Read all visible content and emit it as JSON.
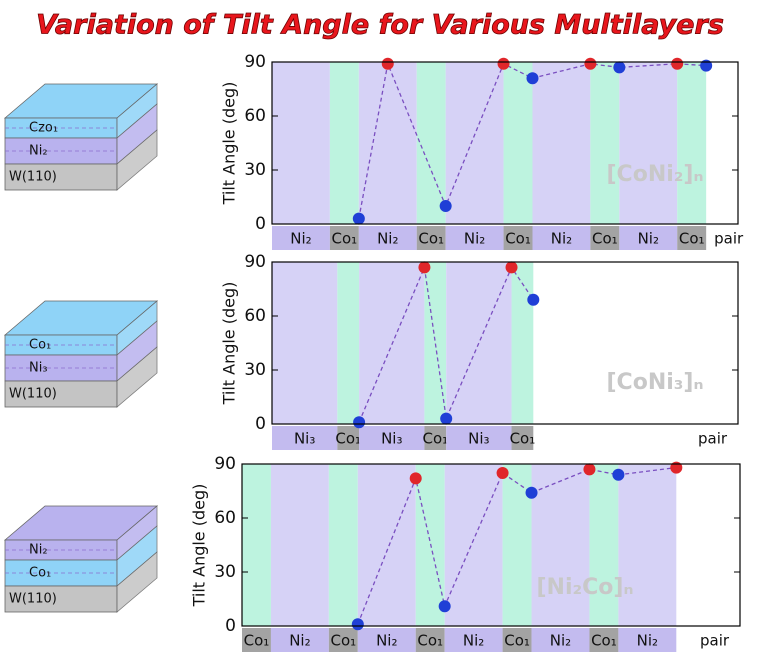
{
  "title": "Variation of Tilt Angle for Various Multilayers",
  "icons": [
    {
      "layers": [
        {
          "label": "Czo₁",
          "color": "#8fd3f7"
        },
        {
          "label": "Ni₂",
          "color": "#b9b2ee"
        },
        {
          "label": "W(110)",
          "color": "#c4c4c4"
        }
      ]
    },
    {
      "layers": [
        {
          "label": "Co₁",
          "color": "#8fd3f7"
        },
        {
          "label": "Ni₃",
          "color": "#b9b2ee"
        },
        {
          "label": "W(110)",
          "color": "#c4c4c4"
        }
      ]
    },
    {
      "layers": [
        {
          "label": "Ni₂",
          "color": "#b9b2ee"
        },
        {
          "label": "Co₁",
          "color": "#8fd3f7"
        },
        {
          "label": "W(110)",
          "color": "#c4c4c4"
        }
      ]
    }
  ],
  "chart_data": [
    {
      "type": "line",
      "y_label": "Tilt Angle  (deg)",
      "watermark": "[CoNi₂]ₙ",
      "x_unit_label": "pair",
      "xlim": [
        0,
        16.1
      ],
      "ylim": [
        0,
        90
      ],
      "yticks": [
        0,
        30,
        60,
        90
      ],
      "line_color": "#7a4fc0",
      "layers": [
        {
          "label": "Ni₂",
          "x0": 0,
          "x1": 2,
          "color": "#d6d2f6",
          "strip_color": "#c3bbef"
        },
        {
          "label": "Co₁",
          "x0": 2,
          "x1": 3,
          "color": "#bdf3df",
          "strip_color": "#a3a3a3"
        },
        {
          "label": "Ni₂",
          "x0": 3,
          "x1": 5,
          "color": "#d6d2f6",
          "strip_color": "#c3bbef"
        },
        {
          "label": "Co₁",
          "x0": 5,
          "x1": 6,
          "color": "#bdf3df",
          "strip_color": "#a3a3a3"
        },
        {
          "label": "Ni₂",
          "x0": 6,
          "x1": 8,
          "color": "#d6d2f6",
          "strip_color": "#c3bbef"
        },
        {
          "label": "Co₁",
          "x0": 8,
          "x1": 9,
          "color": "#bdf3df",
          "strip_color": "#a3a3a3"
        },
        {
          "label": "Ni₂",
          "x0": 9,
          "x1": 11,
          "color": "#d6d2f6",
          "strip_color": "#c3bbef"
        },
        {
          "label": "Co₁",
          "x0": 11,
          "x1": 12,
          "color": "#bdf3df",
          "strip_color": "#a3a3a3"
        },
        {
          "label": "Ni₂",
          "x0": 12,
          "x1": 14,
          "color": "#d6d2f6",
          "strip_color": "#c3bbef"
        },
        {
          "label": "Co₁",
          "x0": 14,
          "x1": 15,
          "color": "#bdf3df",
          "strip_color": "#a3a3a3"
        }
      ],
      "x": [
        3,
        4,
        6,
        8,
        9,
        11,
        12,
        14,
        15
      ],
      "values": [
        3,
        89,
        10,
        89,
        81,
        89,
        87,
        89,
        88
      ],
      "point_colors": [
        "#1f3fd6",
        "#e0262a",
        "#1f3fd6",
        "#e0262a",
        "#1f3fd6",
        "#e0262a",
        "#1f3fd6",
        "#e0262a",
        "#1f3fd6"
      ]
    },
    {
      "type": "line",
      "y_label": "Tilt Angle  (deg)",
      "watermark": "[CoNi₃]ₙ",
      "x_unit_label": "pair",
      "xlim": [
        0,
        21.4
      ],
      "ylim": [
        0,
        90
      ],
      "yticks": [
        0,
        30,
        60,
        90
      ],
      "line_color": "#7a4fc0",
      "layers": [
        {
          "label": "Ni₃",
          "x0": 0,
          "x1": 3,
          "color": "#d6d2f6",
          "strip_color": "#c3bbef"
        },
        {
          "label": "Co₁",
          "x0": 3,
          "x1": 4,
          "color": "#bdf3df",
          "strip_color": "#a3a3a3"
        },
        {
          "label": "Ni₃",
          "x0": 4,
          "x1": 7,
          "color": "#d6d2f6",
          "strip_color": "#c3bbef"
        },
        {
          "label": "Co₁",
          "x0": 7,
          "x1": 8,
          "color": "#bdf3df",
          "strip_color": "#a3a3a3"
        },
        {
          "label": "Ni₃",
          "x0": 8,
          "x1": 11,
          "color": "#d6d2f6",
          "strip_color": "#c3bbef"
        },
        {
          "label": "Co₁",
          "x0": 11,
          "x1": 12,
          "color": "#bdf3df",
          "strip_color": "#a3a3a3"
        }
      ],
      "x": [
        4,
        7,
        8,
        11,
        12
      ],
      "values": [
        1,
        87,
        3,
        87,
        69
      ],
      "point_colors": [
        "#1f3fd6",
        "#e0262a",
        "#1f3fd6",
        "#e0262a",
        "#1f3fd6"
      ]
    },
    {
      "type": "line",
      "y_label": "Tilt Angle  (deg)",
      "watermark": "[Ni₂Co]ₙ",
      "x_unit_label": "pair",
      "xlim": [
        0,
        17.2
      ],
      "ylim": [
        0,
        90
      ],
      "yticks": [
        0,
        30,
        60,
        90
      ],
      "line_color": "#7a4fc0",
      "layers": [
        {
          "label": "Co₁",
          "x0": 0,
          "x1": 1,
          "color": "#bdf3df",
          "strip_color": "#a3a3a3"
        },
        {
          "label": "Ni₂",
          "x0": 1,
          "x1": 3,
          "color": "#d6d2f6",
          "strip_color": "#c3bbef"
        },
        {
          "label": "Co₁",
          "x0": 3,
          "x1": 4,
          "color": "#bdf3df",
          "strip_color": "#a3a3a3"
        },
        {
          "label": "Ni₂",
          "x0": 4,
          "x1": 6,
          "color": "#d6d2f6",
          "strip_color": "#c3bbef"
        },
        {
          "label": "Co₁",
          "x0": 6,
          "x1": 7,
          "color": "#bdf3df",
          "strip_color": "#a3a3a3"
        },
        {
          "label": "Ni₂",
          "x0": 7,
          "x1": 9,
          "color": "#d6d2f6",
          "strip_color": "#c3bbef"
        },
        {
          "label": "Co₁",
          "x0": 9,
          "x1": 10,
          "color": "#bdf3df",
          "strip_color": "#a3a3a3"
        },
        {
          "label": "Ni₂",
          "x0": 10,
          "x1": 12,
          "color": "#d6d2f6",
          "strip_color": "#c3bbef"
        },
        {
          "label": "Co₁",
          "x0": 12,
          "x1": 13,
          "color": "#bdf3df",
          "strip_color": "#a3a3a3"
        },
        {
          "label": "Ni₂",
          "x0": 13,
          "x1": 15,
          "color": "#d6d2f6",
          "strip_color": "#c3bbef"
        }
      ],
      "x": [
        4,
        6,
        7,
        9,
        10,
        12,
        13,
        15
      ],
      "values": [
        1,
        82,
        11,
        85,
        74,
        87,
        84,
        88
      ],
      "point_colors": [
        "#1f3fd6",
        "#e0262a",
        "#1f3fd6",
        "#e0262a",
        "#1f3fd6",
        "#e0262a",
        "#1f3fd6",
        "#e0262a"
      ]
    }
  ]
}
